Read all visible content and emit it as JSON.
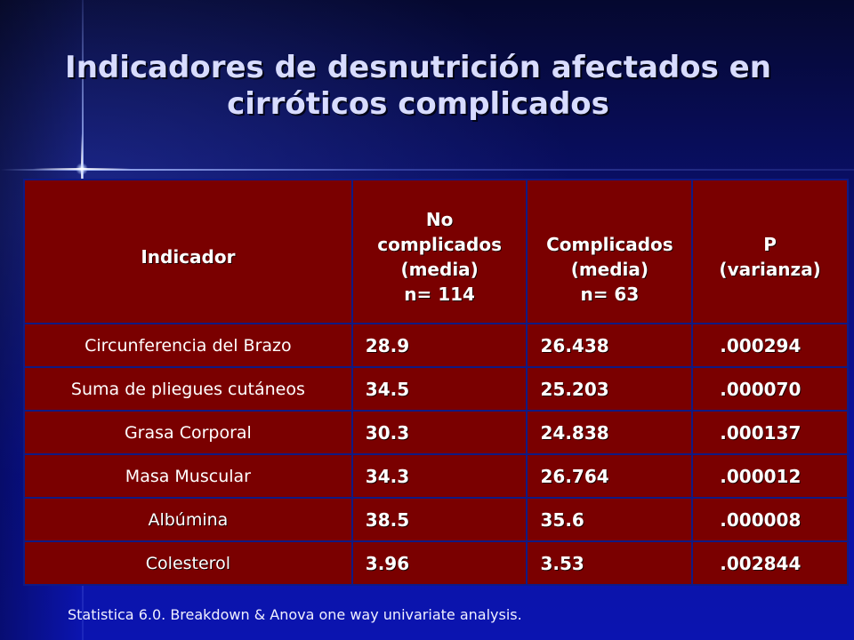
{
  "title": {
    "line1": "Indicadores de desnutrición afectados en",
    "line2": "cirróticos complicados"
  },
  "table": {
    "headers": {
      "indicador": "Indicador",
      "no_complicados": [
        "No",
        "complicados",
        "(media)",
        "n= 114"
      ],
      "complicados": [
        "Complicados",
        "(media)",
        "n= 63"
      ],
      "p": [
        "P",
        "(varianza)"
      ]
    },
    "rows": [
      {
        "label": "Circunferencia del Brazo",
        "no_complicados": "28.9",
        "complicados": "26.438",
        "p": ".000294"
      },
      {
        "label": "Suma de pliegues cutáneos",
        "no_complicados": "34.5",
        "complicados": "25.203",
        "p": ".000070"
      },
      {
        "label": "Grasa Corporal",
        "no_complicados": "30.3",
        "complicados": "24.838",
        "p": ".000137"
      },
      {
        "label": "Masa Muscular",
        "no_complicados": "34.3",
        "complicados": "26.764",
        "p": ".000012"
      },
      {
        "label": "Albúmina",
        "no_complicados": "38.5",
        "complicados": "35.6",
        "p": ".000008"
      },
      {
        "label": "Colesterol",
        "no_complicados": "3.96",
        "complicados": "3.53",
        "p": ".002844"
      }
    ]
  },
  "footer": "Statistica 6.0. Breakdown &  Anova one way univariate analysis.",
  "colors": {
    "background": "#0a12a0",
    "table_fill": "#7a0000",
    "grid": "#0f1a84",
    "title_text": "#d8dcff"
  }
}
